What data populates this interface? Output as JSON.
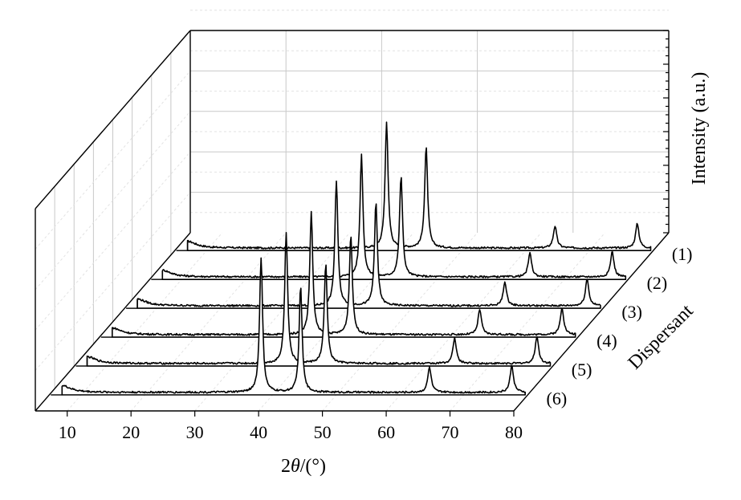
{
  "chart_data": {
    "type": "line",
    "style": "3d-waterfall",
    "xlabel_prefix": "2",
    "xlabel_theta": "θ",
    "xlabel_suffix": "/(°)",
    "ylabel": "Intensity (a.u.)",
    "zlabel": "Dispersant",
    "xlim": [
      5,
      80
    ],
    "x_ticks": [
      "10",
      "20",
      "30",
      "40",
      "50",
      "60",
      "70",
      "80"
    ],
    "grid": true,
    "series": [
      {
        "name": "(1)",
        "peaks": [
          [
            38.2,
            150
          ],
          [
            44.4,
            120
          ],
          [
            64.6,
            26
          ],
          [
            77.5,
            29
          ]
        ]
      },
      {
        "name": "(2)",
        "peaks": [
          [
            38.2,
            145
          ],
          [
            44.4,
            120
          ],
          [
            64.6,
            28
          ],
          [
            77.5,
            30
          ]
        ]
      },
      {
        "name": "(3)",
        "peaks": [
          [
            38.2,
            148
          ],
          [
            44.4,
            122
          ],
          [
            64.6,
            28
          ],
          [
            77.5,
            32
          ]
        ]
      },
      {
        "name": "(4)",
        "peaks": [
          [
            38.2,
            145
          ],
          [
            44.4,
            118
          ],
          [
            64.6,
            30
          ],
          [
            77.5,
            32
          ]
        ]
      },
      {
        "name": "(5)",
        "peaks": [
          [
            38.2,
            155
          ],
          [
            44.4,
            118
          ],
          [
            64.6,
            30
          ],
          [
            77.5,
            32
          ]
        ]
      },
      {
        "name": "(6)",
        "peaks": [
          [
            38.2,
            160
          ],
          [
            44.4,
            126
          ],
          [
            64.6,
            30
          ],
          [
            77.5,
            32
          ]
        ]
      }
    ]
  }
}
